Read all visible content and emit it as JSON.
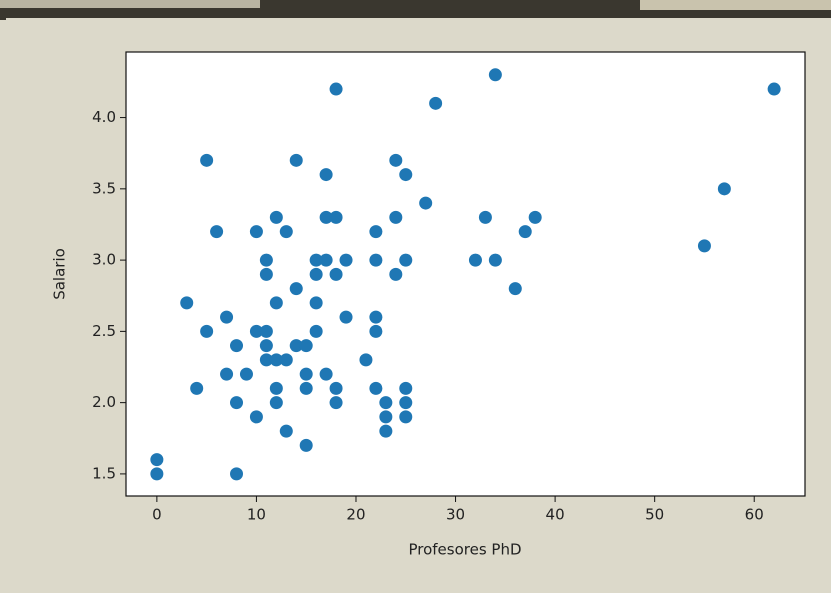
{
  "chart_data": {
    "type": "scatter",
    "x_label": "Profesores PhD",
    "y_label": "Salario",
    "x": [
      0,
      0,
      8,
      3,
      4,
      5,
      5,
      6,
      7,
      7,
      8,
      8,
      9,
      10,
      10,
      10,
      11,
      11,
      11,
      11,
      11,
      12,
      12,
      12,
      12,
      12,
      13,
      13,
      13,
      14,
      14,
      14,
      15,
      15,
      15,
      15,
      16,
      16,
      16,
      16,
      17,
      17,
      17,
      17,
      18,
      18,
      18,
      18,
      18,
      19,
      19,
      21,
      22,
      22,
      22,
      22,
      22,
      23,
      23,
      23,
      24,
      24,
      24,
      25,
      25,
      25,
      25,
      25,
      27,
      28,
      32,
      33,
      34,
      34,
      36,
      37,
      38,
      55,
      57,
      62
    ],
    "values": [
      1.6,
      1.5,
      1.5,
      2.7,
      2.1,
      3.7,
      2.5,
      3.2,
      2.6,
      2.2,
      2.4,
      2.0,
      2.2,
      3.2,
      2.5,
      1.9,
      3.0,
      2.9,
      2.5,
      2.4,
      2.3,
      3.3,
      2.7,
      2.3,
      2.1,
      2.0,
      3.2,
      2.3,
      1.8,
      3.7,
      2.8,
      2.4,
      2.4,
      2.2,
      2.1,
      1.7,
      3.0,
      2.9,
      2.7,
      2.5,
      3.6,
      3.3,
      3.0,
      2.2,
      4.2,
      3.3,
      2.9,
      2.1,
      2.0,
      3.0,
      2.6,
      2.3,
      3.2,
      3.0,
      2.6,
      2.5,
      2.1,
      2.0,
      1.9,
      1.8,
      3.7,
      3.3,
      2.9,
      3.6,
      3.0,
      2.1,
      2.0,
      1.9,
      3.4,
      4.1,
      3.0,
      3.3,
      4.3,
      3.0,
      2.8,
      3.2,
      3.3,
      3.1,
      3.5,
      4.2
    ],
    "color": "#1f77b4",
    "xlim": [
      -3.1,
      65.1
    ],
    "ylim": [
      1.345,
      4.46
    ],
    "xticks": [
      0,
      10,
      20,
      30,
      40,
      50,
      60
    ],
    "yticks": [
      1.5,
      {
        "value": 2,
        "label": "2.0"
      },
      2.5,
      {
        "value": 3,
        "label": "3.0"
      },
      3.5,
      {
        "value": 4,
        "label": "4.0"
      }
    ]
  }
}
